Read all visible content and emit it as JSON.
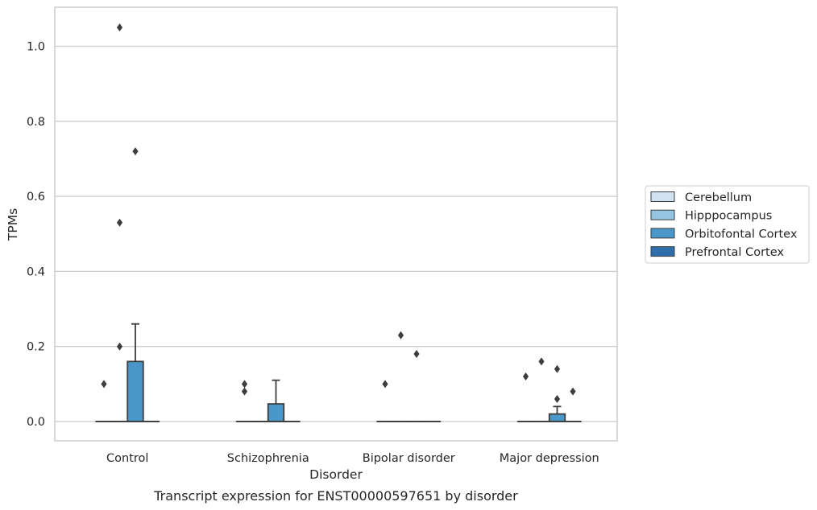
{
  "chart_data": {
    "type": "box",
    "caption": "Transcript expression for ENST00000597651 by disorder",
    "xlabel": "Disorder",
    "ylabel": "TPMs",
    "ylim": [
      -0.05,
      1.1
    ],
    "yticks": [
      0.0,
      0.2,
      0.4,
      0.6,
      0.8,
      1.0
    ],
    "ytick_labels": [
      "0.0",
      "0.2",
      "0.4",
      "0.6",
      "0.8",
      "1.0"
    ],
    "grid": "horizontal",
    "legend_position": "right",
    "categories": [
      "Control",
      "Schizophrenia",
      "Bipolar disorder",
      "Major depression"
    ],
    "series": [
      {
        "name": "Cerebellum",
        "color": "#d0e1f2",
        "boxes": [
          {
            "q1": 0,
            "median": 0,
            "q3": 0,
            "whisker_low": 0,
            "whisker_high": 0,
            "outliers": [
              0.1
            ]
          },
          {
            "q1": 0,
            "median": 0,
            "q3": 0,
            "whisker_low": 0,
            "whisker_high": 0,
            "outliers": [
              0.08,
              0.1
            ]
          },
          {
            "q1": 0,
            "median": 0,
            "q3": 0,
            "whisker_low": 0,
            "whisker_high": 0,
            "outliers": [
              0.1
            ]
          },
          {
            "q1": 0,
            "median": 0,
            "q3": 0,
            "whisker_low": 0,
            "whisker_high": 0,
            "outliers": [
              0.12
            ]
          }
        ]
      },
      {
        "name": "Hipppocampus",
        "color": "#94c4df",
        "boxes": [
          {
            "q1": 0,
            "median": 0,
            "q3": 0,
            "whisker_low": 0,
            "whisker_high": 0,
            "outliers": [
              0.2,
              0.53,
              1.05
            ]
          },
          {
            "q1": 0,
            "median": 0,
            "q3": 0,
            "whisker_low": 0,
            "whisker_high": 0,
            "outliers": []
          },
          {
            "q1": 0,
            "median": 0,
            "q3": 0,
            "whisker_low": 0,
            "whisker_high": 0,
            "outliers": [
              0.23
            ]
          },
          {
            "q1": 0,
            "median": 0,
            "q3": 0,
            "whisker_low": 0,
            "whisker_high": 0,
            "outliers": [
              0.16
            ]
          }
        ]
      },
      {
        "name": "Orbitofontal Cortex",
        "color": "#4a98c9",
        "boxes": [
          {
            "q1": 0,
            "median": 0,
            "q3": 0.16,
            "whisker_low": 0,
            "whisker_high": 0.26,
            "outliers": [
              0.72
            ]
          },
          {
            "q1": 0,
            "median": 0,
            "q3": 0.047,
            "whisker_low": 0,
            "whisker_high": 0.11,
            "outliers": []
          },
          {
            "q1": 0,
            "median": 0,
            "q3": 0,
            "whisker_low": 0,
            "whisker_high": 0,
            "outliers": [
              0.18
            ]
          },
          {
            "q1": 0,
            "median": 0,
            "q3": 0.02,
            "whisker_low": 0,
            "whisker_high": 0.04,
            "outliers": [
              0.06,
              0.14
            ]
          }
        ]
      },
      {
        "name": "Prefrontal Cortex",
        "color": "#2e6eaa",
        "boxes": [
          {
            "q1": 0,
            "median": 0,
            "q3": 0,
            "whisker_low": 0,
            "whisker_high": 0,
            "outliers": []
          },
          {
            "q1": 0,
            "median": 0,
            "q3": 0,
            "whisker_low": 0,
            "whisker_high": 0,
            "outliers": []
          },
          {
            "q1": 0,
            "median": 0,
            "q3": 0,
            "whisker_low": 0,
            "whisker_high": 0,
            "outliers": []
          },
          {
            "q1": 0,
            "median": 0,
            "q3": 0,
            "whisker_low": 0,
            "whisker_high": 0,
            "outliers": [
              0.08
            ]
          }
        ]
      }
    ]
  }
}
